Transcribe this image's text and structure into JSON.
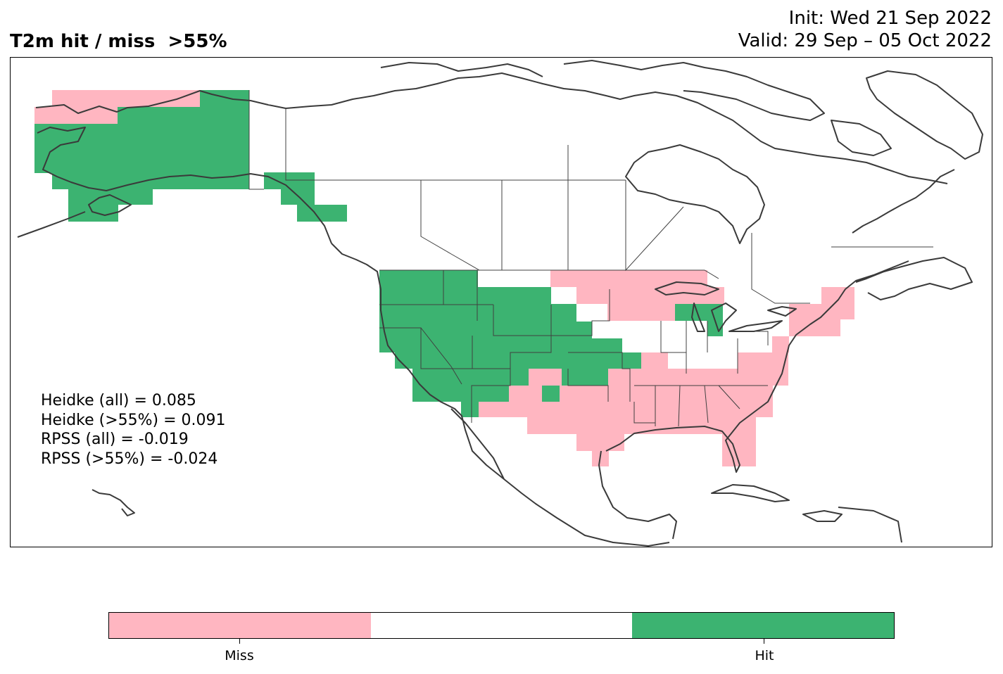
{
  "title": "T2m hit / miss  >55%",
  "init_line": "Init: Wed 21 Sep 2022",
  "valid_line": "Valid: 29 Sep – 05 Oct 2022",
  "stats": [
    "Heidke (all) = 0.085",
    "Heidke (>55%) = 0.091",
    "RPSS (all) = -0.019",
    "RPSS (>55%) = -0.024"
  ],
  "colors": {
    "miss": "#ffb6c1",
    "neutral": "#ffffff",
    "hit": "#3cb371",
    "coast": "#3a3a3a",
    "border": "#404040"
  },
  "colorbar": {
    "labels": [
      "Miss",
      "Hit"
    ]
  },
  "legend_categories": [
    "miss",
    "neutral",
    "hit"
  ],
  "icons": {
    "map": "map-of-north-america"
  }
}
